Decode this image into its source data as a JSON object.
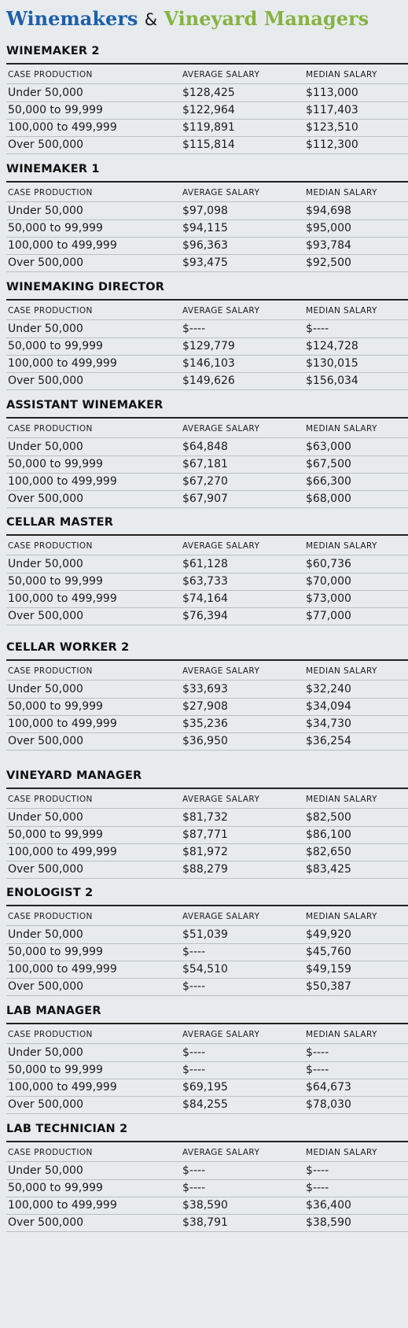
{
  "title": {
    "part1": "Winemakers",
    "amp": "&",
    "part2": "Vineyard Managers"
  },
  "columns": {
    "case": "CASE PRODUCTION",
    "avg": "AVERAGE SALARY",
    "median": "MEDIAN SALARY"
  },
  "sections": [
    {
      "title": "WINEMAKER 2",
      "rows": [
        {
          "case": "Under 50,000",
          "avg": "$128,425",
          "median": "$113,000"
        },
        {
          "case": "50,000 to 99,999",
          "avg": "$122,964",
          "median": "$117,403"
        },
        {
          "case": "100,000 to 499,999",
          "avg": "$119,891",
          "median": "$123,510"
        },
        {
          "case": "Over 500,000",
          "avg": "$115,814",
          "median": "$112,300"
        }
      ]
    },
    {
      "title": "WINEMAKER 1",
      "rows": [
        {
          "case": "Under 50,000",
          "avg": "$97,098",
          "median": "$94,698"
        },
        {
          "case": "50,000 to 99,999",
          "avg": "$94,115",
          "median": "$95,000"
        },
        {
          "case": "100,000 to 499,999",
          "avg": "$96,363",
          "median": "$93,784"
        },
        {
          "case": "Over 500,000",
          "avg": "$93,475",
          "median": "$92,500"
        }
      ]
    },
    {
      "title": "WINEMAKING DIRECTOR",
      "rows": [
        {
          "case": "Under 50,000",
          "avg": "$----",
          "median": "$----"
        },
        {
          "case": "50,000 to 99,999",
          "avg": "$129,779",
          "median": "$124,728"
        },
        {
          "case": "100,000 to 499,999",
          "avg": "$146,103",
          "median": "$130,015"
        },
        {
          "case": "Over 500,000",
          "avg": "$149,626",
          "median": "$156,034"
        }
      ]
    },
    {
      "title": "ASSISTANT WINEMAKER",
      "rows": [
        {
          "case": "Under 50,000",
          "avg": "$64,848",
          "median": "$63,000"
        },
        {
          "case": "50,000 to 99,999",
          "avg": "$67,181",
          "median": "$67,500"
        },
        {
          "case": "100,000 to 499,999",
          "avg": "$67,270",
          "median": "$66,300"
        },
        {
          "case": "Over 500,000",
          "avg": "$67,907",
          "median": "$68,000"
        }
      ]
    },
    {
      "title": "CELLAR MASTER",
      "rows": [
        {
          "case": "Under 50,000",
          "avg": "$61,128",
          "median": "$60,736"
        },
        {
          "case": "50,000 to 99,999",
          "avg": "$63,733",
          "median": "$70,000"
        },
        {
          "case": "100,000 to 499,999",
          "avg": "$74,164",
          "median": "$73,000"
        },
        {
          "case": "Over 500,000",
          "avg": "$76,394",
          "median": "$77,000"
        }
      ]
    },
    {
      "title": "CELLAR WORKER 2",
      "rows": [
        {
          "case": "Under 50,000",
          "avg": "$33,693",
          "median": "$32,240"
        },
        {
          "case": "50,000 to 99,999",
          "avg": "$27,908",
          "median": "$34,094"
        },
        {
          "case": "100,000 to 499,999",
          "avg": "$35,236",
          "median": "$34,730"
        },
        {
          "case": "Over 500,000",
          "avg": "$36,950",
          "median": "$36,254"
        }
      ]
    },
    {
      "title": "VINEYARD MANAGER",
      "rows": [
        {
          "case": "Under 50,000",
          "avg": "$81,732",
          "median": "$82,500"
        },
        {
          "case": "50,000 to 99,999",
          "avg": "$87,771",
          "median": "$86,100"
        },
        {
          "case": "100,000 to 499,999",
          "avg": "$81,972",
          "median": "$82,650"
        },
        {
          "case": "Over 500,000",
          "avg": "$88,279",
          "median": "$83,425"
        }
      ]
    },
    {
      "title": "ENOLOGIST 2",
      "rows": [
        {
          "case": "Under 50,000",
          "avg": "$51,039",
          "median": "$49,920"
        },
        {
          "case": "50,000 to 99,999",
          "avg": "$----",
          "median": "$45,760"
        },
        {
          "case": "100,000 to 499,999",
          "avg": "$54,510",
          "median": "$49,159"
        },
        {
          "case": "Over 500,000",
          "avg": "$----",
          "median": "$50,387"
        }
      ]
    },
    {
      "title": "LAB MANAGER",
      "rows": [
        {
          "case": "Under 50,000",
          "avg": "$----",
          "median": "$----"
        },
        {
          "case": "50,000 to 99,999",
          "avg": "$----",
          "median": "$----"
        },
        {
          "case": "100,000 to 499,999",
          "avg": "$69,195",
          "median": "$64,673"
        },
        {
          "case": "Over 500,000",
          "avg": "$84,255",
          "median": "$78,030"
        }
      ]
    },
    {
      "title": "LAB TECHNICIAN 2",
      "rows": [
        {
          "case": "Under 50,000",
          "avg": "$----",
          "median": "$----"
        },
        {
          "case": "50,000 to 99,999",
          "avg": "$----",
          "median": "$----"
        },
        {
          "case": "100,000 to 499,999",
          "avg": "$38,590",
          "median": "$36,400"
        },
        {
          "case": "Over 500,000",
          "avg": "$38,791",
          "median": "$38,590"
        }
      ]
    }
  ]
}
